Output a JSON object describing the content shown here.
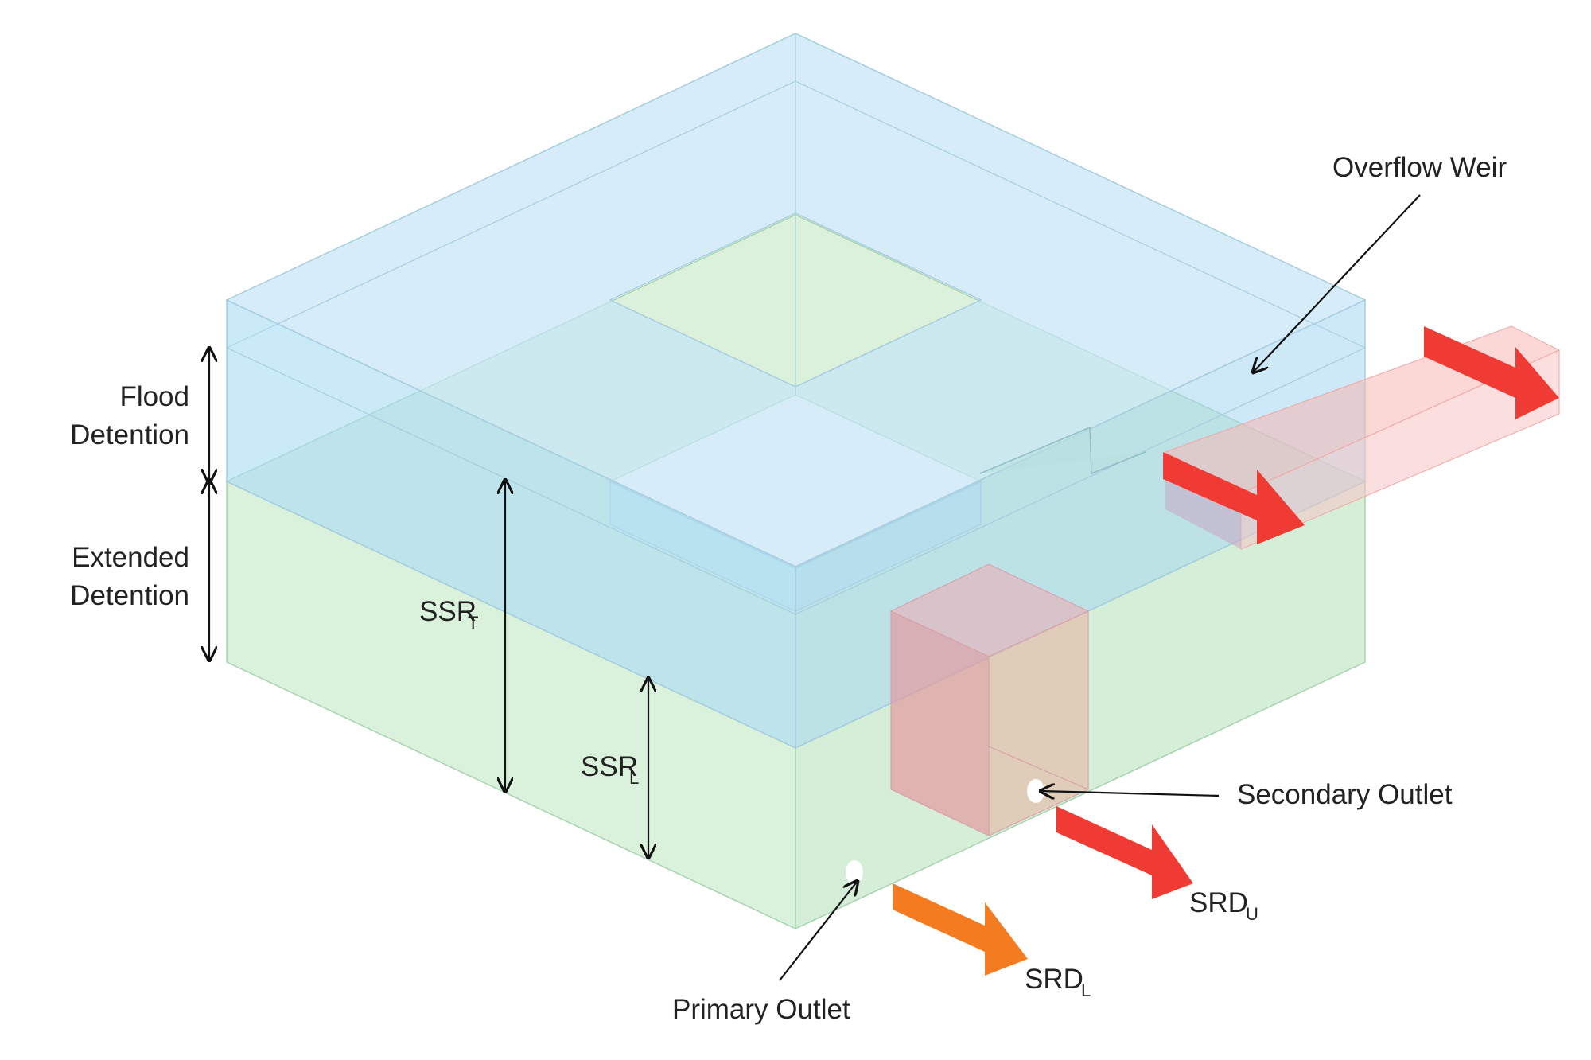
{
  "labels": {
    "overflow_weir": "Overflow Weir",
    "flood_detention_line1": "Flood",
    "flood_detention_line2": "Detention",
    "extended_detention_line1": "Extended",
    "extended_detention_line2": "Detention",
    "ssr_t_main": "SSR",
    "ssr_t_sub": "T",
    "ssr_l_main": "SSR",
    "ssr_l_sub": "L",
    "secondary_outlet": "Secondary Outlet",
    "primary_outlet": "Primary Outlet",
    "srd_u_main": "SRD",
    "srd_u_sub": "U",
    "srd_l_main": "SRD",
    "srd_l_sub": "L"
  },
  "colors": {
    "flood_zone": "#a8d8f0",
    "extended_zone": "#b8e6c0",
    "outflow_red": "#ef3b33",
    "outflow_orange": "#f47b20",
    "outlet_box": "#e89aa0"
  }
}
